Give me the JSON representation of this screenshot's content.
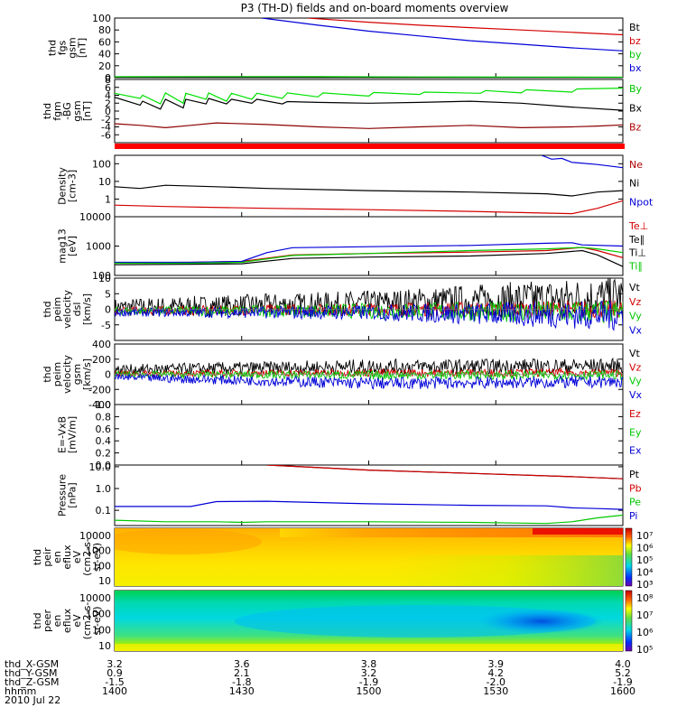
{
  "title": "P3 (TH-D) fields and on-board moments overview",
  "colors": {
    "black": "#000000",
    "red": "#d40000",
    "green": "#00c800",
    "blue": "#0000d8",
    "darkred": "#8b0000",
    "brightgreen": "#00e000"
  },
  "chart_data": [
    {
      "type": "line",
      "id": "fgs",
      "ylabel": [
        "thd",
        "fgs",
        "gsm",
        "[nT]"
      ],
      "ylim": [
        0,
        100
      ],
      "yticks": [
        "100",
        "80",
        "60",
        "40",
        "20",
        "0"
      ],
      "legend": [
        "Bt",
        "bz",
        "by",
        "bx"
      ],
      "series": [
        {
          "name": "Bt",
          "color": "black",
          "x": [
            0,
            1
          ],
          "y": [
            0.5,
            0.5
          ]
        },
        {
          "name": "bz",
          "color": "red",
          "x": [
            0.38,
            0.5,
            0.6,
            0.7,
            0.8,
            0.9,
            1.0
          ],
          "y": [
            100,
            93,
            88,
            84,
            80,
            76,
            72
          ]
        },
        {
          "name": "by",
          "color": "green",
          "x": [
            0,
            0.2,
            0.4,
            0.6,
            0.8,
            1.0
          ],
          "y": [
            1.5,
            1.8,
            1.6,
            1.2,
            1.0,
            0.8
          ]
        },
        {
          "name": "bx",
          "color": "blue",
          "x": [
            0.29,
            0.4,
            0.5,
            0.6,
            0.7,
            0.8,
            0.9,
            1.0
          ],
          "y": [
            100,
            88,
            78,
            70,
            62,
            56,
            50,
            45
          ]
        }
      ]
    },
    {
      "type": "line",
      "id": "fgm",
      "ylabel": [
        "thd",
        "fgm",
        "-BG",
        "gsm",
        "[nT]"
      ],
      "ylim": [
        -8,
        8
      ],
      "yticks": [
        "8",
        "6",
        "4",
        "2",
        "0",
        "-2",
        "-4",
        "-6"
      ],
      "legend": [
        "By",
        "Bx",
        "Bz"
      ],
      "series": [
        {
          "name": "By",
          "color": "brightgreen",
          "x": [
            0,
            0.05,
            0.055,
            0.09,
            0.1,
            0.135,
            0.14,
            0.18,
            0.185,
            0.22,
            0.23,
            0.27,
            0.28,
            0.33,
            0.34,
            0.4,
            0.41,
            0.5,
            0.51,
            0.6,
            0.61,
            0.72,
            0.73,
            0.8,
            0.81,
            0.9,
            0.91,
            1.0
          ],
          "y": [
            4.5,
            3.2,
            4.0,
            1.8,
            4.6,
            2.0,
            4.5,
            3.0,
            4.6,
            2.5,
            4.5,
            3.0,
            4.5,
            3.2,
            4.6,
            3.6,
            4.6,
            3.8,
            4.7,
            4.2,
            4.8,
            4.5,
            5.2,
            4.6,
            5.4,
            4.8,
            5.6,
            5.8
          ]
        },
        {
          "name": "Bx",
          "color": "black",
          "x": [
            0,
            0.05,
            0.055,
            0.09,
            0.1,
            0.135,
            0.14,
            0.18,
            0.185,
            0.22,
            0.23,
            0.27,
            0.28,
            0.33,
            0.34,
            0.4,
            0.5,
            0.6,
            0.7,
            0.8,
            0.9,
            1.0
          ],
          "y": [
            3.5,
            1.5,
            2.5,
            0.5,
            3.0,
            0.8,
            3.0,
            1.8,
            3.2,
            1.8,
            3.0,
            2.0,
            3.0,
            1.8,
            2.4,
            2.2,
            2.0,
            2.2,
            2.5,
            2.0,
            1.0,
            0.2
          ]
        },
        {
          "name": "Bz",
          "color": "darkred",
          "x": [
            0,
            0.05,
            0.1,
            0.15,
            0.2,
            0.3,
            0.4,
            0.5,
            0.6,
            0.7,
            0.8,
            0.9,
            0.95,
            1.0
          ],
          "y": [
            -3.2,
            -3.6,
            -4.2,
            -3.6,
            -3.0,
            -3.4,
            -4.0,
            -4.4,
            -4.0,
            -3.6,
            -4.2,
            -4.0,
            -3.8,
            -3.5
          ]
        }
      ]
    },
    {
      "type": "line",
      "id": "density",
      "ylabel": [
        "Density",
        "[cm-3]"
      ],
      "ylim": [
        0.1,
        300
      ],
      "yscale": "log",
      "yticks": [
        "100",
        "10",
        "1"
      ],
      "legend": [
        "Ne",
        "Ni",
        "Npot"
      ],
      "series": [
        {
          "name": "Ne",
          "color": "red",
          "x": [
            0,
            0.1,
            0.3,
            0.5,
            0.7,
            0.85,
            0.9,
            0.95,
            1.0
          ],
          "y": [
            0.45,
            0.38,
            0.3,
            0.25,
            0.2,
            0.16,
            0.15,
            0.3,
            0.8
          ]
        },
        {
          "name": "Ni",
          "color": "black",
          "x": [
            0,
            0.05,
            0.1,
            0.2,
            0.3,
            0.5,
            0.7,
            0.85,
            0.9,
            0.95,
            1.0
          ],
          "y": [
            5,
            4,
            6,
            5,
            4,
            3,
            2.5,
            2,
            1.5,
            2.5,
            3
          ]
        },
        {
          "name": "Npot",
          "color": "blue",
          "x": [
            0.84,
            0.86,
            0.88,
            0.9,
            0.95,
            1.0
          ],
          "y": [
            300,
            180,
            200,
            120,
            90,
            60
          ]
        }
      ]
    },
    {
      "type": "line",
      "id": "temp",
      "ylabel": [
        "mag13",
        "[eV]"
      ],
      "ylim": [
        100,
        10000
      ],
      "yscale": "log",
      "yticks": [
        "10000",
        "1000",
        "100"
      ],
      "legend": [
        "Te⊥",
        "Te∥",
        "Ti⊥",
        "Ti∥"
      ],
      "series": [
        {
          "name": "Te⊥",
          "color": "red",
          "x": [
            0,
            0.15,
            0.25,
            0.35,
            0.5,
            0.7,
            0.85,
            0.92,
            0.95,
            1.0
          ],
          "y": [
            270,
            280,
            300,
            500,
            560,
            620,
            700,
            900,
            700,
            400
          ]
        },
        {
          "name": "Te∥",
          "color": "black",
          "x": [
            0,
            0.15,
            0.25,
            0.35,
            0.5,
            0.7,
            0.85,
            0.92,
            0.95,
            1.0
          ],
          "y": [
            230,
            240,
            250,
            380,
            420,
            460,
            560,
            700,
            500,
            200
          ]
        },
        {
          "name": "Ti⊥",
          "color": "blue",
          "x": [
            0,
            0.15,
            0.25,
            0.3,
            0.35,
            0.5,
            0.7,
            0.85,
            0.9,
            0.92,
            1.0
          ],
          "y": [
            280,
            280,
            300,
            600,
            880,
            950,
            1050,
            1250,
            1300,
            1100,
            1000
          ]
        },
        {
          "name": "Ti∥",
          "color": "green",
          "x": [
            0,
            0.15,
            0.25,
            0.35,
            0.5,
            0.7,
            0.85,
            0.92,
            0.95,
            1.0
          ],
          "y": [
            260,
            260,
            280,
            480,
            560,
            700,
            800,
            900,
            800,
            600
          ]
        }
      ]
    },
    {
      "type": "line",
      "id": "peimvel",
      "ylabel": [
        "thd",
        "peim",
        "velocity",
        "dsl",
        "[km/s]"
      ],
      "ylim": [
        -10,
        10
      ],
      "yticks": [
        "10",
        "5",
        "0",
        "-5"
      ],
      "legend": [
        "Vt",
        "Vz",
        "Vy",
        "Vx"
      ],
      "noise": true,
      "series": [
        {
          "name": "Vt",
          "color": "black",
          "x": [
            0,
            0.5,
            1.0
          ],
          "y": [
            0.5,
            2,
            4
          ],
          "amp": [
            3,
            4,
            7
          ]
        },
        {
          "name": "Vz",
          "color": "red",
          "x": [
            0,
            0.5,
            1.0
          ],
          "y": [
            -0.5,
            0,
            0
          ],
          "amp": [
            1.2,
            2,
            3
          ]
        },
        {
          "name": "Vy",
          "color": "green",
          "x": [
            0,
            0.5,
            1.0
          ],
          "y": [
            -0.5,
            -0.5,
            -1
          ],
          "amp": [
            1.2,
            2.5,
            4
          ]
        },
        {
          "name": "Vx",
          "color": "blue",
          "x": [
            0,
            0.5,
            1.0
          ],
          "y": [
            -1,
            -1,
            -2
          ],
          "amp": [
            1.2,
            2.5,
            5
          ]
        }
      ]
    },
    {
      "type": "line",
      "id": "peimvelgsm",
      "ylabel": [
        "thd",
        "peim",
        "velocity",
        "gsm",
        "[km/s]"
      ],
      "ylim": [
        -400,
        400
      ],
      "yticks": [
        "400",
        "200",
        "0",
        "-200",
        "-400"
      ],
      "legend": [
        "Vt",
        "Vz",
        "Vy",
        "Vx"
      ],
      "noise": true,
      "series": [
        {
          "name": "Vt",
          "color": "black",
          "x": [
            0,
            0.5,
            1.0
          ],
          "y": [
            60,
            100,
            110
          ],
          "amp": [
            70,
            100,
            100
          ]
        },
        {
          "name": "Vz",
          "color": "red",
          "x": [
            0,
            0.5,
            1.0
          ],
          "y": [
            10,
            20,
            20
          ],
          "amp": [
            40,
            50,
            50
          ]
        },
        {
          "name": "Vy",
          "color": "green",
          "x": [
            0,
            0.5,
            1.0
          ],
          "y": [
            0,
            -10,
            -10
          ],
          "amp": [
            40,
            60,
            60
          ]
        },
        {
          "name": "Vx",
          "color": "blue",
          "x": [
            0,
            0.5,
            1.0
          ],
          "y": [
            -40,
            -120,
            -100
          ],
          "amp": [
            50,
            80,
            80
          ]
        }
      ]
    },
    {
      "type": "line",
      "id": "efield",
      "ylabel": [
        "E=-VxB",
        "[mV/m]"
      ],
      "ylim": [
        0,
        1
      ],
      "yticks": [
        "1.0",
        "0.8",
        "0.6",
        "0.4",
        "0.2",
        "0.0"
      ],
      "legend": [
        "Ez",
        "Ey",
        "Ex"
      ],
      "series": []
    },
    {
      "type": "line",
      "id": "pressure",
      "ylabel": [
        "Pressure",
        "[nPa]"
      ],
      "ylim": [
        0.02,
        12
      ],
      "yscale": "log",
      "yticks": [
        "10.0",
        "1.0",
        "0.1"
      ],
      "legend": [
        "Pt",
        "Pb",
        "Pe",
        "Pi"
      ],
      "series": [
        {
          "name": "Pt",
          "color": "black",
          "x": [
            0.3,
            0.5,
            0.7,
            0.9,
            1.0
          ],
          "y": [
            12,
            7,
            5,
            3.5,
            2.8
          ]
        },
        {
          "name": "Pb",
          "color": "red",
          "x": [
            0.3,
            0.5,
            0.7,
            0.9,
            1.0
          ],
          "y": [
            12,
            7,
            5,
            3.5,
            2.8
          ]
        },
        {
          "name": "Pe",
          "color": "green",
          "x": [
            0,
            0.1,
            0.2,
            0.25,
            0.3,
            0.5,
            0.7,
            0.85,
            0.9,
            0.95,
            1.0
          ],
          "y": [
            0.035,
            0.03,
            0.03,
            0.028,
            0.03,
            0.03,
            0.028,
            0.025,
            0.03,
            0.045,
            0.06
          ]
        },
        {
          "name": "Pi",
          "color": "blue",
          "x": [
            0,
            0.15,
            0.2,
            0.3,
            0.5,
            0.7,
            0.85,
            0.9,
            0.95,
            1.0
          ],
          "y": [
            0.15,
            0.15,
            0.25,
            0.26,
            0.2,
            0.17,
            0.16,
            0.13,
            0.12,
            0.11
          ]
        }
      ]
    },
    {
      "type": "heatmap",
      "id": "peir",
      "ylabel": [
        "thd",
        "peir",
        "en",
        "eflux",
        "eV",
        "(cm2-s-",
        "sr-eV)"
      ],
      "yticks": [
        "10000",
        "1000",
        "100",
        "10"
      ],
      "cbar_ticks": [
        "10⁷",
        "10⁶",
        "10⁵",
        "10⁴",
        "10³"
      ]
    },
    {
      "type": "heatmap",
      "id": "peer",
      "ylabel": [
        "thd",
        "peer",
        "en",
        "eflux",
        "eV",
        "(cm2-s-",
        "sr-eV)"
      ],
      "yticks": [
        "10000",
        "1000",
        "100",
        "10"
      ],
      "cbar_ticks": [
        "10⁸",
        "10⁷",
        "10⁶",
        "10⁵"
      ]
    }
  ],
  "xaxis": {
    "rows": [
      {
        "label": "thd_X-GSM",
        "values": [
          "3.2",
          "3.6",
          "3.8",
          "3.9",
          "4.0"
        ]
      },
      {
        "label": "thd_Y-GSM",
        "values": [
          "0.9",
          "2.1",
          "3.2",
          "4.2",
          "5.2"
        ]
      },
      {
        "label": "thd_Z-GSM",
        "values": [
          "-1.5",
          "-1.8",
          "-1.9",
          "-2.0",
          "-1.9"
        ]
      },
      {
        "label": "hhmm",
        "values": [
          "1400",
          "1430",
          "1500",
          "1530",
          "1600"
        ]
      }
    ],
    "date": "2010 Jul 22"
  }
}
